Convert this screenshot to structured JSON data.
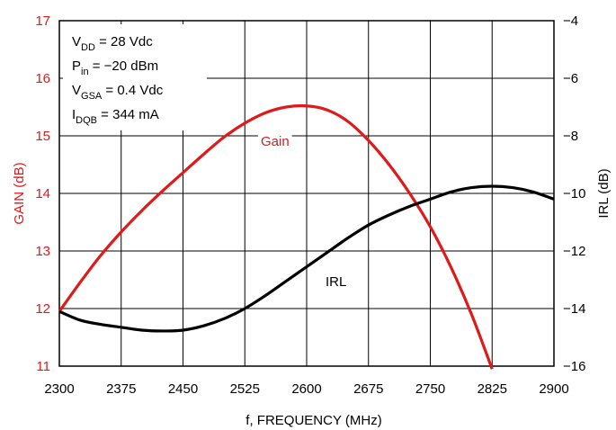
{
  "colors": {
    "gain": "#e0191b",
    "irl": "#000000",
    "grid": "#000000"
  },
  "annotation_lines": [
    {
      "main": "V",
      "sub": "DD",
      "rest": " = 28 Vdc"
    },
    {
      "main": "P",
      "sub": "in",
      "rest": " = −20 dBm"
    },
    {
      "main": "V",
      "sub": "GSA",
      "rest": " = 0.4 Vdc"
    },
    {
      "main": "I",
      "sub": "DQB",
      "rest": " = 344 mA"
    }
  ],
  "chart_data": {
    "type": "line",
    "xlabel": "f, FREQUENCY (MHz)",
    "ylabel_left": "GAIN (dB)",
    "ylabel_right": "IRL (dB)",
    "xlim": [
      2300,
      2900
    ],
    "ylim_left": [
      11,
      17
    ],
    "ylim_right": [
      -16,
      -4
    ],
    "x_ticks": [
      2300,
      2375,
      2450,
      2525,
      2600,
      2675,
      2750,
      2825,
      2900
    ],
    "y_ticks_left": [
      11,
      12,
      13,
      14,
      15,
      16,
      17
    ],
    "y_ticks_right": [
      -16,
      -14,
      -12,
      -10,
      -8,
      -6,
      -4
    ],
    "grid": true,
    "series": [
      {
        "name": "Gain",
        "axis": "left",
        "x": [
          2300,
          2325,
          2350,
          2375,
          2400,
          2425,
          2450,
          2475,
          2500,
          2525,
          2550,
          2575,
          2600,
          2625,
          2650,
          2675,
          2700,
          2725,
          2750,
          2775,
          2800,
          2825
        ],
        "y": [
          11.95,
          12.45,
          12.92,
          13.33,
          13.7,
          14.04,
          14.36,
          14.68,
          14.98,
          15.22,
          15.4,
          15.5,
          15.52,
          15.45,
          15.25,
          14.92,
          14.5,
          14.0,
          13.42,
          12.72,
          11.9,
          10.95
        ]
      },
      {
        "name": "IRL",
        "axis": "right",
        "x": [
          2300,
          2325,
          2350,
          2375,
          2400,
          2425,
          2450,
          2475,
          2500,
          2525,
          2550,
          2575,
          2600,
          2625,
          2650,
          2675,
          2700,
          2725,
          2750,
          2775,
          2800,
          2825,
          2850,
          2875,
          2900
        ],
        "y": [
          -14.1,
          -14.4,
          -14.55,
          -14.65,
          -14.75,
          -14.78,
          -14.75,
          -14.6,
          -14.35,
          -14.0,
          -13.55,
          -13.05,
          -12.55,
          -12.05,
          -11.55,
          -11.1,
          -10.75,
          -10.45,
          -10.2,
          -9.95,
          -9.8,
          -9.75,
          -9.8,
          -9.95,
          -10.2
        ]
      }
    ]
  }
}
